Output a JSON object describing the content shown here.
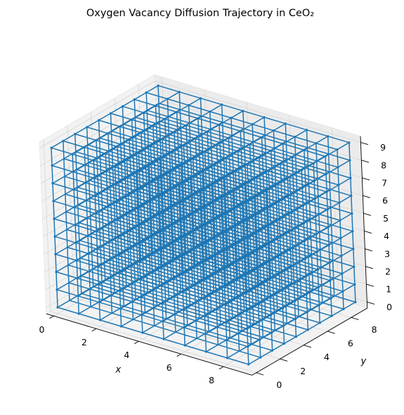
{
  "chart_data": {
    "type": "line3d",
    "title": "Oxygen Vacancy Diffusion Trajectory in CeO₂",
    "xlabel": "x",
    "ylabel": "y",
    "zlabel": "",
    "xlim": [
      0,
      9
    ],
    "ylim": [
      0,
      9
    ],
    "zlim": [
      0,
      9
    ],
    "x_ticks": [
      "0",
      "2",
      "4",
      "6",
      "8"
    ],
    "y_ticks": [
      "0",
      "2",
      "4",
      "6",
      "8"
    ],
    "z_ticks": [
      "0",
      "1",
      "2",
      "3",
      "4",
      "5",
      "6",
      "7",
      "8",
      "9"
    ],
    "grid": true,
    "lattice": {
      "min": 0,
      "max": 9,
      "step": 1
    },
    "series": [
      {
        "color": "#1f77b4",
        "marker": "point"
      }
    ]
  }
}
